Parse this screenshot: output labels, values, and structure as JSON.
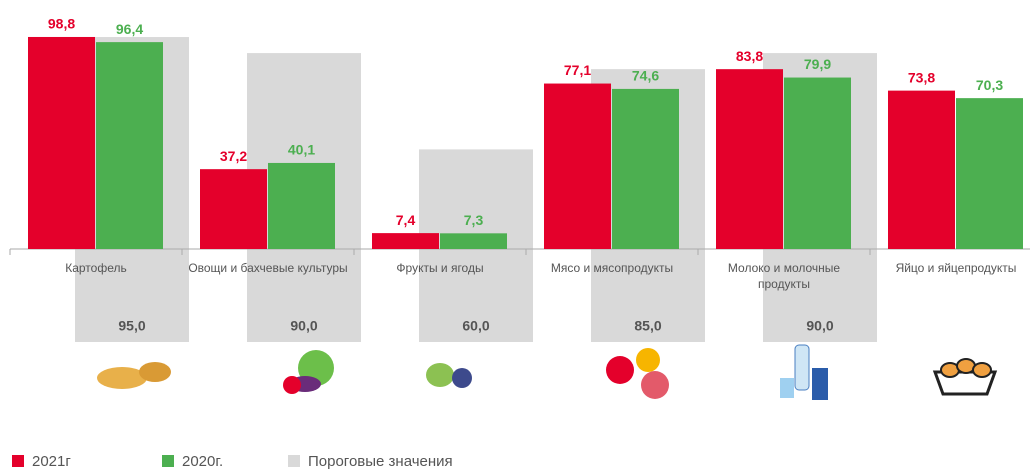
{
  "chart_data": {
    "type": "bar",
    "categories": [
      "Картофель",
      "Овощи и бахчевые культуры",
      "Фрукты и ягоды",
      "Мясо и мясопродукты",
      "Молоко и молочные продукты",
      "Яйцо и яйцепродукты"
    ],
    "series": [
      {
        "name": "2021г",
        "color": "#e4002b",
        "values": [
          98.8,
          37.2,
          7.4,
          77.1,
          83.8,
          73.8
        ],
        "value_labels": [
          "98,8",
          "37,2",
          "7,4",
          "77,1",
          "83,8",
          "73,8"
        ]
      },
      {
        "name": "2020г.",
        "color": "#4caf50",
        "values": [
          96.4,
          40.1,
          7.3,
          74.6,
          79.9,
          70.3
        ],
        "value_labels": [
          "96,4",
          "40,1",
          "7,3",
          "74,6",
          "79,9",
          "70,3"
        ]
      },
      {
        "name": "Пороговые значения",
        "color": "#d9d9d9",
        "values": [
          95.0,
          90.0,
          60.0,
          85.0,
          90.0,
          null
        ],
        "value_labels": [
          "95,0",
          "90,0",
          "60,0",
          "85,0",
          "90,0",
          null
        ]
      }
    ]
  }
}
